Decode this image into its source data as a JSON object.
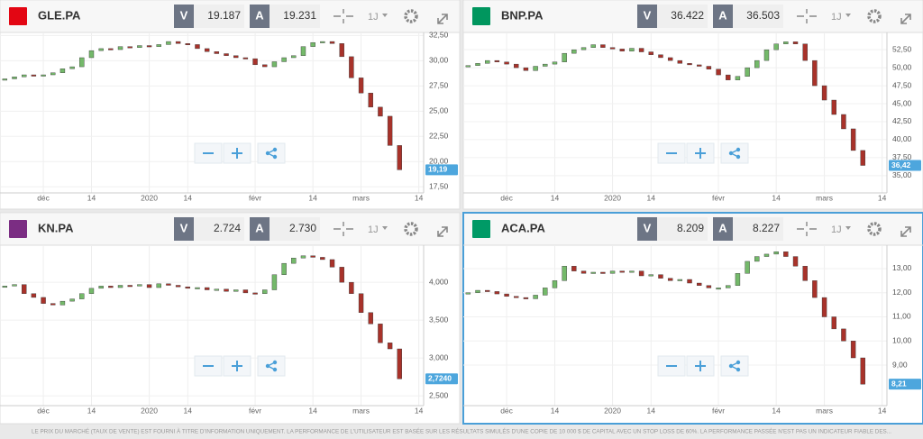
{
  "up_color": "#74b96a",
  "down_color": "#a8322a",
  "footer": "LE PRIX DU MARCHÉ (TAUX DE VENTE) EST FOURNI À TITRE D'INFORMATION UNIQUEMENT. LA PERFORMANCE DE L'UTILISATEUR EST BASÉE SUR LES RÉSULTATS SIMULÉS D'UNE COPIE DE 10 000 $ DE CAPITAL AVEC UN STOP LOSS DE 60%. LA PERFORMANCE PASSÉE N'EST PAS UN INDICATEUR FIABLE DES...",
  "panels": [
    {
      "ticker": "GLE.PA",
      "bid_label": "V",
      "bid": "19.187",
      "ask_label": "A",
      "ask": "19.231",
      "period": "1J",
      "chart": {
        "type": "candlestick",
        "categories": [
          null,
          null,
          null,
          null,
          "déc",
          null,
          null,
          null,
          null,
          "14",
          null,
          null,
          null,
          null,
          null,
          "2020",
          null,
          null,
          null,
          "14",
          null,
          null,
          null,
          null,
          null,
          null,
          "févr",
          null,
          null,
          null,
          null,
          null,
          "14",
          null,
          null,
          null,
          null,
          "mars",
          null,
          null,
          null,
          null,
          null,
          "14"
        ],
        "closes": [
          28.2,
          28.4,
          28.6,
          28.5,
          28.6,
          28.8,
          29.2,
          29.4,
          30.3,
          31.0,
          31.2,
          31.1,
          31.4,
          31.3,
          31.5,
          31.4,
          31.6,
          31.9,
          31.7,
          31.6,
          31.2,
          30.9,
          30.7,
          30.5,
          30.3,
          30.2,
          29.6,
          29.4,
          29.9,
          30.3,
          30.5,
          31.4,
          31.8,
          31.9,
          31.7,
          30.4,
          28.3,
          26.8,
          25.4,
          24.5,
          21.6,
          19.19,
          null,
          null
        ],
        "ylim": [
          16.9,
          32.8
        ],
        "yticks": [
          {
            "value": 32.5,
            "label": "32,50"
          },
          {
            "value": 30,
            "label": "30,00"
          },
          {
            "value": 27.5,
            "label": "27,50"
          },
          {
            "value": 25,
            "label": "25,00"
          },
          {
            "value": 22.5,
            "label": "22,50"
          },
          {
            "value": 20,
            "label": "20,00"
          },
          {
            "value": 17.5,
            "label": "17,50"
          }
        ],
        "last_label": "19,19"
      }
    },
    {
      "ticker": "BNP.PA",
      "bid_label": "V",
      "bid": "36.422",
      "ask_label": "A",
      "ask": "36.503",
      "period": "1J",
      "chart": {
        "type": "candlestick",
        "categories": [
          null,
          null,
          null,
          null,
          "déc",
          null,
          null,
          null,
          null,
          "14",
          null,
          null,
          null,
          null,
          null,
          "2020",
          null,
          null,
          null,
          "14",
          null,
          null,
          null,
          null,
          null,
          null,
          "févr",
          null,
          null,
          null,
          null,
          null,
          "14",
          null,
          null,
          null,
          null,
          "mars",
          null,
          null,
          null,
          null,
          null,
          "14"
        ],
        "closes": [
          50.3,
          50.6,
          51.0,
          50.8,
          50.5,
          50.0,
          49.6,
          50.2,
          50.5,
          50.8,
          52.0,
          52.5,
          52.8,
          53.2,
          52.8,
          52.6,
          52.3,
          52.7,
          52.2,
          51.8,
          51.4,
          51.0,
          50.6,
          50.4,
          50.2,
          49.8,
          49.0,
          48.3,
          48.8,
          50.0,
          51.0,
          52.5,
          53.3,
          53.6,
          53.3,
          51.0,
          47.5,
          45.5,
          43.5,
          41.5,
          38.5,
          36.42,
          null,
          null
        ],
        "ylim": [
          32.6,
          54.9
        ],
        "yticks": [
          {
            "value": 52.5,
            "label": "52,50"
          },
          {
            "value": 50,
            "label": "50,00"
          },
          {
            "value": 47.5,
            "label": "47,50"
          },
          {
            "value": 45,
            "label": "45,00"
          },
          {
            "value": 42.5,
            "label": "42,50"
          },
          {
            "value": 40,
            "label": "40,00"
          },
          {
            "value": 37.5,
            "label": "37,50"
          },
          {
            "value": 35,
            "label": "35,00"
          }
        ],
        "last_label": "36,42"
      }
    },
    {
      "ticker": "KN.PA",
      "bid_label": "V",
      "bid": "2.724",
      "ask_label": "A",
      "ask": "2.730",
      "period": "1J",
      "chart": {
        "type": "candlestick",
        "categories": [
          null,
          null,
          null,
          null,
          "déc",
          null,
          null,
          null,
          null,
          "14",
          null,
          null,
          null,
          null,
          null,
          "2020",
          null,
          null,
          null,
          "14",
          null,
          null,
          null,
          null,
          null,
          null,
          "févr",
          null,
          null,
          null,
          null,
          null,
          "14",
          null,
          null,
          null,
          null,
          "mars",
          null,
          null,
          null,
          null,
          null,
          "14"
        ],
        "closes": [
          3.95,
          3.97,
          3.85,
          3.8,
          3.72,
          3.7,
          3.75,
          3.78,
          3.85,
          3.92,
          3.95,
          3.93,
          3.96,
          3.95,
          3.97,
          3.93,
          3.98,
          3.96,
          3.94,
          3.92,
          3.93,
          3.9,
          3.91,
          3.88,
          3.9,
          3.86,
          3.85,
          3.9,
          4.1,
          4.25,
          4.32,
          4.35,
          4.33,
          4.3,
          4.2,
          4.0,
          3.85,
          3.6,
          3.45,
          3.2,
          3.12,
          2.724,
          null,
          null
        ],
        "ylim": [
          2.37,
          4.49
        ],
        "yticks": [
          {
            "value": 4,
            "label": "4,000"
          },
          {
            "value": 3.5,
            "label": "3,500"
          },
          {
            "value": 3,
            "label": "3,000"
          },
          {
            "value": 2.5,
            "label": "2,500"
          }
        ],
        "last_label": "2,7240"
      }
    },
    {
      "ticker": "ACA.PA",
      "bid_label": "V",
      "bid": "8.209",
      "ask_label": "A",
      "ask": "8.227",
      "period": "1J",
      "chart": {
        "type": "candlestick",
        "categories": [
          null,
          null,
          null,
          null,
          "déc",
          null,
          null,
          null,
          null,
          "14",
          null,
          null,
          null,
          null,
          null,
          "2020",
          null,
          null,
          null,
          "14",
          null,
          null,
          null,
          null,
          null,
          null,
          "févr",
          null,
          null,
          null,
          null,
          null,
          "14",
          null,
          null,
          null,
          null,
          "mars",
          null,
          null,
          null,
          null,
          null,
          "14"
        ],
        "closes": [
          12.0,
          12.1,
          12.05,
          11.95,
          11.85,
          11.8,
          11.75,
          11.9,
          12.2,
          12.5,
          13.1,
          12.9,
          12.8,
          12.85,
          12.8,
          12.9,
          12.85,
          12.9,
          12.7,
          12.75,
          12.6,
          12.5,
          12.55,
          12.4,
          12.3,
          12.2,
          12.2,
          12.3,
          12.8,
          13.3,
          13.5,
          13.6,
          13.7,
          13.5,
          13.1,
          12.5,
          11.8,
          11.0,
          10.5,
          10.0,
          9.3,
          8.21,
          null,
          null
        ],
        "ylim": [
          7.32,
          13.97
        ],
        "yticks": [
          {
            "value": 13,
            "label": "13,00"
          },
          {
            "value": 12,
            "label": "12,00"
          },
          {
            "value": 11,
            "label": "11,00"
          },
          {
            "value": 10,
            "label": "10,00"
          },
          {
            "value": 9,
            "label": "9,00"
          }
        ],
        "last_label": "8,21"
      }
    }
  ]
}
